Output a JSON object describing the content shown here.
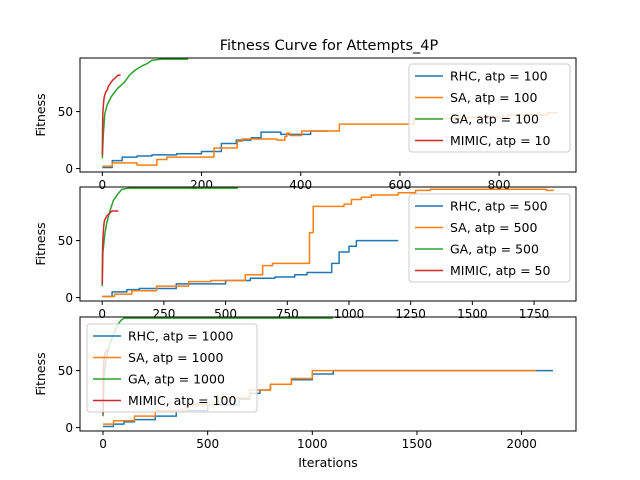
{
  "chart_data": {
    "type": "line",
    "title": "Fitness Curve for Attempts_4P",
    "xlabel": "Iterations",
    "ylabel": "Fitness",
    "colors": {
      "RHC": "#1f77b4",
      "SA": "#ff7f0e",
      "GA": "#2ca02c",
      "MIMIC": "#d62728"
    },
    "subplots": [
      {
        "xlim": [
          -45,
          955
        ],
        "ylim": [
          -3,
          97
        ],
        "xticks": [
          0,
          200,
          400,
          600,
          800
        ],
        "yticks": [
          0,
          50
        ],
        "legend_loc": "upper right",
        "series": [
          {
            "name": "RHC, atp = 100",
            "key": "RHC",
            "x": [
              0,
              20,
              20,
              40,
              40,
              70,
              70,
              100,
              100,
              150,
              150,
              200,
              200,
              240,
              240,
              270,
              270,
              300,
              300,
              320,
              320,
              360,
              360,
              420,
              420,
              455
            ],
            "y": [
              1,
              1,
              7,
              7,
              10,
              10,
              11,
              11,
              12,
              12,
              13,
              13,
              15,
              15,
              22,
              22,
              25,
              25,
              27,
              27,
              32,
              32,
              30,
              30,
              33,
              33
            ]
          },
          {
            "name": "SA, atp = 100",
            "key": "SA",
            "x": [
              0,
              20,
              20,
              70,
              70,
              110,
              110,
              130,
              130,
              225,
              225,
              272,
              272,
              282,
              282,
              352,
              352,
              368,
              368,
              372,
              372,
              378,
              378,
              402,
              402,
              478,
              478,
              628,
              628,
              738,
              738,
              818,
              818,
              898,
              898,
              918
            ],
            "y": [
              2,
              2,
              5,
              5,
              3,
              3,
              8,
              8,
              10,
              10,
              18,
              18,
              24,
              24,
              26,
              26,
              25,
              25,
              28,
              28,
              31,
              31,
              29,
              29,
              33,
              33,
              39,
              39,
              44,
              44,
              45,
              45,
              47,
              47,
              49,
              49
            ]
          },
          {
            "name": "GA, atp = 100",
            "key": "GA",
            "x": [
              0,
              2,
              5,
              10,
              18,
              30,
              45,
              55,
              65,
              72,
              80,
              90,
              100,
              120,
              150,
              173
            ],
            "y": [
              9,
              30,
              48,
              56,
              63,
              70,
              76,
              82,
              86,
              88,
              90,
              92,
              95,
              96,
              96,
              96
            ]
          },
          {
            "name": "MIMIC, atp = 10",
            "key": "MIMIC",
            "x": [
              0,
              0.5,
              1,
              2,
              3,
              4,
              6,
              8,
              10,
              12,
              15,
              18,
              22,
              27,
              32,
              37
            ],
            "y": [
              12,
              35,
              48,
              55,
              60,
              63,
              66,
              68,
              69,
              72,
              74,
              76,
              78,
              80,
              82,
              82
            ]
          }
        ]
      },
      {
        "xlim": [
          -90,
          1920
        ],
        "ylim": [
          -3,
          97
        ],
        "xticks": [
          0,
          250,
          500,
          750,
          1000,
          1250,
          1500,
          1750
        ],
        "yticks": [
          0,
          50
        ],
        "legend_loc": "upper right",
        "series": [
          {
            "name": "RHC, atp = 500",
            "key": "RHC",
            "x": [
              0,
              40,
              40,
              100,
              100,
              150,
              150,
              300,
              300,
              500,
              500,
              600,
              600,
              700,
              700,
              780,
              780,
              830,
              830,
              930,
              930,
              960,
              960,
              1000,
              1000,
              1030,
              1030,
              1200
            ],
            "y": [
              1,
              1,
              5,
              5,
              7,
              7,
              8,
              8,
              12,
              12,
              15,
              15,
              17,
              17,
              18,
              18,
              20,
              20,
              22,
              22,
              30,
              30,
              40,
              40,
              45,
              45,
              50,
              50
            ]
          },
          {
            "name": "SA, atp = 500",
            "key": "SA",
            "x": [
              0,
              50,
              50,
              120,
              120,
              220,
              220,
              350,
              350,
              440,
              440,
              580,
              580,
              650,
              650,
              690,
              690,
              840,
              840,
              855,
              855,
              980,
              980,
              1010,
              1010,
              1050,
              1050,
              1090,
              1090,
              1200,
              1200,
              1270,
              1270,
              1330,
              1330,
              1800,
              1800,
              1830
            ],
            "y": [
              1,
              1,
              3,
              3,
              6,
              6,
              10,
              10,
              14,
              14,
              15,
              15,
              20,
              20,
              28,
              28,
              30,
              30,
              57,
              57,
              80,
              80,
              82,
              82,
              86,
              86,
              88,
              88,
              90,
              90,
              92,
              92,
              94,
              94,
              95,
              95,
              94,
              94
            ]
          },
          {
            "name": "GA, atp = 500",
            "key": "GA",
            "x": [
              0,
              3,
              10,
              18,
              30,
              45,
              60,
              80,
              110,
              150,
              200,
              300,
              400,
              550
            ],
            "y": [
              10,
              40,
              55,
              65,
              75,
              85,
              90,
              95,
              96,
              96,
              96,
              96,
              96,
              96
            ]
          },
          {
            "name": "MIMIC, atp = 50",
            "key": "MIMIC",
            "x": [
              0,
              1,
              2,
              4,
              6,
              8,
              10,
              15,
              20,
              30,
              40,
              50,
              60,
              65
            ],
            "y": [
              12,
              35,
              48,
              56,
              62,
              66,
              68,
              70,
              72,
              74,
              76,
              76,
              76,
              76
            ]
          }
        ]
      },
      {
        "xlim": [
          -110,
          2260
        ],
        "ylim": [
          -3,
          97
        ],
        "xticks": [
          0,
          500,
          1000,
          1500,
          2000
        ],
        "yticks": [
          0,
          50
        ],
        "legend_loc": "upper left",
        "series": [
          {
            "name": "RHC, atp = 1000",
            "key": "RHC",
            "x": [
              0,
              50,
              50,
              100,
              100,
              150,
              150,
              250,
              250,
              350,
              350,
              500,
              500,
              650,
              650,
              700,
              700,
              750,
              750,
              800,
              800,
              900,
              900,
              1000,
              1000,
              1100,
              1100,
              2150
            ],
            "y": [
              1,
              1,
              3,
              3,
              5,
              5,
              7,
              7,
              10,
              10,
              15,
              15,
              20,
              20,
              25,
              25,
              30,
              30,
              33,
              33,
              38,
              38,
              42,
              42,
              47,
              47,
              50,
              50
            ]
          },
          {
            "name": "SA, atp = 1000",
            "key": "SA",
            "x": [
              0,
              50,
              50,
              150,
              150,
              250,
              250,
              400,
              400,
              550,
              550,
              700,
              700,
              800,
              800,
              900,
              900,
              1000,
              1000,
              2070
            ],
            "y": [
              3,
              3,
              6,
              6,
              10,
              10,
              15,
              15,
              20,
              20,
              26,
              26,
              33,
              33,
              38,
              38,
              43,
              43,
              50,
              50
            ]
          },
          {
            "name": "GA, atp = 1000",
            "key": "GA",
            "x": [
              0,
              5,
              15,
              30,
              50,
              70,
              85,
              100,
              150,
              300,
              600,
              1000,
              1100
            ],
            "y": [
              10,
              45,
              60,
              72,
              82,
              90,
              94,
              96,
              96,
              96,
              96,
              96,
              96
            ]
          },
          {
            "name": "MIMIC, atp = 100",
            "key": "MIMIC",
            "x": [
              0,
              1,
              2,
              4,
              6,
              10,
              15,
              20,
              30
            ],
            "y": [
              12,
              40,
              52,
              58,
              62,
              65,
              67,
              68,
              68
            ]
          }
        ]
      }
    ]
  }
}
